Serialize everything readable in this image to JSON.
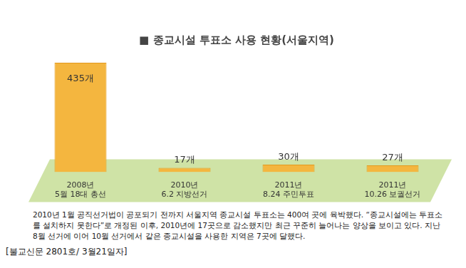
{
  "chart_data": {
    "type": "bar",
    "title": "■ 종교시설 투표소 사용 현황(서울지역)",
    "categories": [
      [
        "2008년",
        "5월 18대 총선"
      ],
      [
        "2010년",
        "6.2 지방선거"
      ],
      [
        "2011년",
        "8.24 주민투표"
      ],
      [
        "2011년",
        "10.26 보궐선거"
      ]
    ],
    "values": [
      435,
      17,
      30,
      27
    ],
    "value_labels": [
      "435개",
      "17개",
      "30개",
      "27개"
    ],
    "data_labels": true,
    "color": "#f4b63f",
    "ylim": [
      0,
      480
    ],
    "tick_labels": "x",
    "grid": false,
    "annotations": [
      "2010년 1월 공직선거법이 공포되기 전까지 서울지역 종교시설 투표소는 400여 곳에 육박했다. “종교시설에는 투표소를 설치하지 못한다”로 개정된 이후, 2010년에 17곳으로 감소했지만 최근 꾸준히 늘어나는 양상을 보이고 있다. 지난 8월 선거에 이어 10월 선거에서 같은 종교시설을 사용한 지역은 7곳에 달했다.",
      "[불교신문 2801호/ 3월21일자]"
    ]
  }
}
